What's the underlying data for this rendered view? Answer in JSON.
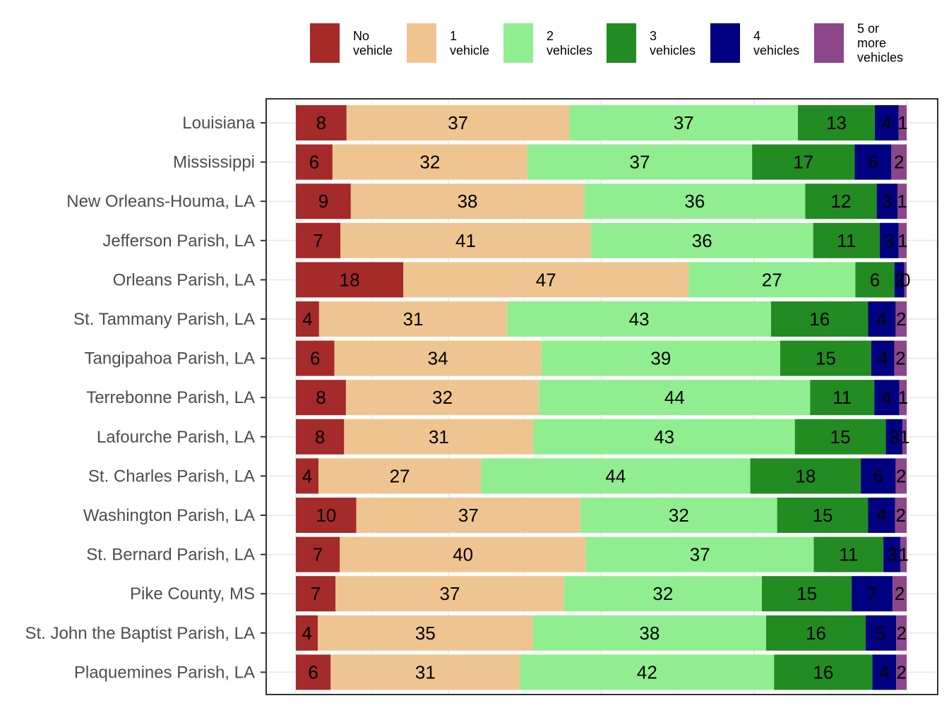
{
  "chart_data": {
    "type": "bar",
    "orientation": "horizontal",
    "stacked": true,
    "title": "",
    "xlabel": "",
    "ylabel": "",
    "xlim": [
      0,
      100
    ],
    "grid": true,
    "legend_position": "top",
    "categories": [
      "Louisiana",
      "Mississippi",
      "New Orleans-Houma, LA",
      "Jefferson Parish, LA",
      "Orleans Parish, LA",
      "St. Tammany Parish, LA",
      "Tangipahoa Parish, LA",
      "Terrebonne Parish, LA",
      "Lafourche Parish, LA",
      "St. Charles Parish, LA",
      "Washington Parish, LA",
      "St. Bernard Parish, LA",
      "Pike County, MS",
      "St. John the Baptist Parish, LA",
      "Plaquemines Parish, LA"
    ],
    "series": [
      {
        "name": "No vehicle",
        "legend_lines": [
          "No",
          "vehicle"
        ],
        "color": "#A52A2A",
        "values": [
          8.3,
          6.0,
          9.0,
          7.3,
          17.6,
          3.8,
          6.3,
          8.2,
          7.9,
          3.7,
          9.9,
          7.2,
          6.5,
          3.6,
          5.7
        ]
      },
      {
        "name": "1 vehicle",
        "legend_lines": [
          "1",
          "vehicle"
        ],
        "color": "#EEC591",
        "values": [
          36.5,
          31.9,
          38.2,
          41.0,
          46.7,
          30.8,
          33.9,
          31.6,
          31.0,
          26.6,
          36.7,
          40.3,
          37.4,
          35.2,
          31.0
        ]
      },
      {
        "name": "2 vehicles",
        "legend_lines": [
          "2",
          "vehicles"
        ],
        "color": "#90EE90",
        "values": [
          37.4,
          36.8,
          36.2,
          36.4,
          27.3,
          43.2,
          39.1,
          44.4,
          42.8,
          44.1,
          32.2,
          37.3,
          32.4,
          38.2,
          41.6
        ]
      },
      {
        "name": "3 vehicles",
        "legend_lines": [
          "3",
          "vehicles"
        ],
        "color": "#228B22",
        "values": [
          12.6,
          16.8,
          11.7,
          10.9,
          6.4,
          15.9,
          14.9,
          10.5,
          14.9,
          18.1,
          14.9,
          11.4,
          14.7,
          16.3,
          16.1
        ]
      },
      {
        "name": "4 vehicles",
        "legend_lines": [
          "4",
          "vehicles"
        ],
        "color": "#000080",
        "values": [
          3.9,
          6.0,
          3.4,
          3.1,
          1.6,
          4.5,
          3.8,
          4.1,
          2.7,
          5.7,
          4.4,
          2.8,
          6.7,
          5.0,
          3.9
        ]
      },
      {
        "name": "5 or more vehicles",
        "legend_lines": [
          "5 or",
          "more",
          "vehicles"
        ],
        "color": "#8B4789",
        "values": [
          1.3,
          2.5,
          1.5,
          1.3,
          0.4,
          1.8,
          2.0,
          1.2,
          0.7,
          1.8,
          1.9,
          1.0,
          2.3,
          1.7,
          1.7
        ]
      }
    ],
    "value_labels": [
      [
        "8",
        "6",
        "9",
        "7",
        "18",
        "4",
        "6",
        "8",
        "8",
        "4",
        "10",
        "7",
        "7",
        "4",
        "6"
      ],
      [
        "37",
        "32",
        "38",
        "41",
        "47",
        "31",
        "34",
        "32",
        "31",
        "27",
        "37",
        "40",
        "37",
        "35",
        "31"
      ],
      [
        "37",
        "37",
        "36",
        "36",
        "27",
        "43",
        "39",
        "44",
        "43",
        "44",
        "32",
        "37",
        "32",
        "38",
        "42"
      ],
      [
        "13",
        "17",
        "12",
        "11",
        "6",
        "16",
        "15",
        "11",
        "15",
        "18",
        "15",
        "11",
        "15",
        "16",
        "16"
      ],
      [
        "4",
        "6",
        "3",
        "3",
        "2",
        "4",
        "4",
        "4",
        "3",
        "6",
        "4",
        "3",
        "7",
        "5",
        "4"
      ],
      [
        "1",
        "2",
        "1",
        "1",
        "0",
        "2",
        "2",
        "1",
        "1",
        "2",
        "2",
        "1",
        "2",
        "2",
        "2"
      ]
    ]
  }
}
